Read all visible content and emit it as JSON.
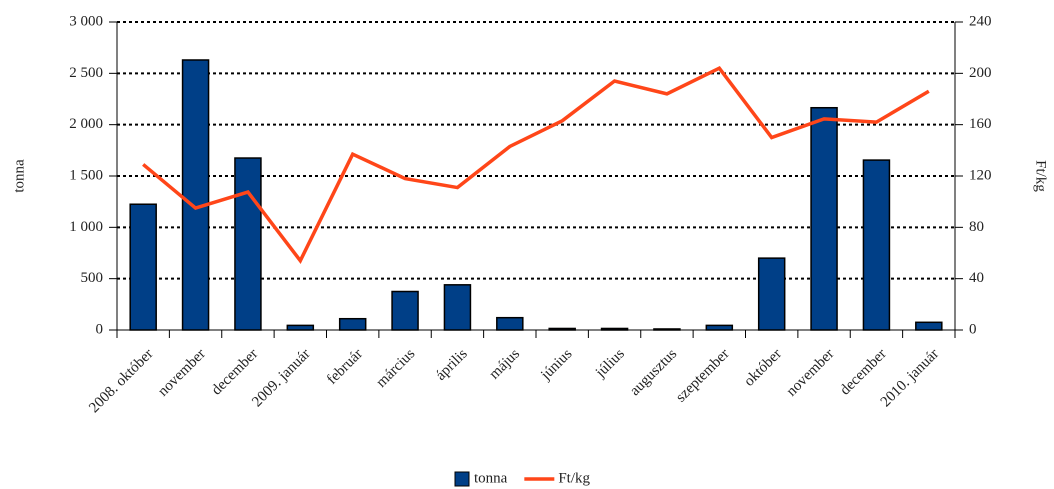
{
  "chart_data": {
    "type": "bar_line",
    "categories": [
      "2008. október",
      "november",
      "december",
      "2009. január",
      "február",
      "március",
      "április",
      "május",
      "június",
      "július",
      "augusztus",
      "szeptember",
      "október",
      "november",
      "december",
      "2010. január"
    ],
    "series": [
      {
        "name": "tonna",
        "color": "#003f87",
        "type": "bar",
        "values": [
          1225,
          2630,
          1675,
          45,
          110,
          375,
          440,
          120,
          15,
          15,
          10,
          45,
          700,
          2165,
          1655,
          75
        ]
      },
      {
        "name": "Ft/kg",
        "color": "#ff4619",
        "type": "line",
        "axis": "y2",
        "values": [
          129,
          95,
          107.5,
          54,
          137,
          118,
          111,
          143,
          163,
          194,
          184,
          204,
          150,
          164.5,
          162,
          186
        ]
      }
    ],
    "ylabel": "tonna",
    "y2label": "Ft/kg",
    "ylim": [
      0,
      3000
    ],
    "yticks": [
      0,
      500,
      {
        "value": 1000,
        "label": "1 000"
      },
      {
        "value": 1500,
        "label": "1 500"
      },
      {
        "value": 2000,
        "label": "2 000"
      },
      {
        "value": 2500,
        "label": "2 500"
      },
      {
        "value": 3000,
        "label": "3 000"
      }
    ],
    "y2lim": [
      0,
      240
    ],
    "y2ticks": [
      0,
      40,
      80,
      120,
      160,
      200,
      240
    ],
    "grid": true,
    "legend": "bottom"
  }
}
